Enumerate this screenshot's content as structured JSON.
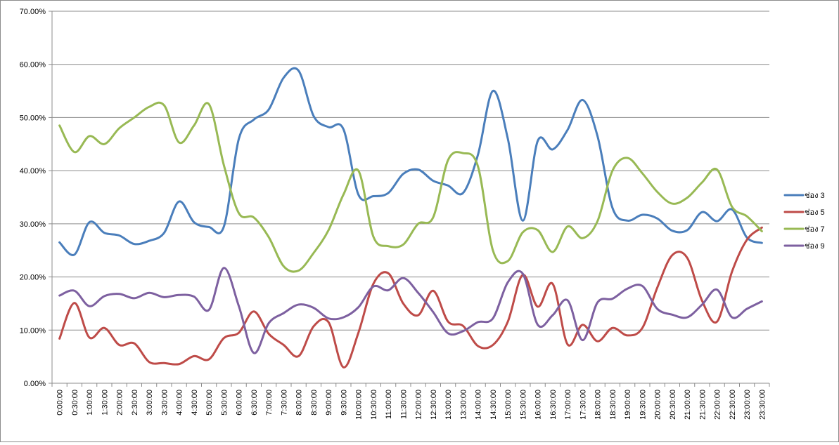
{
  "chart_data": {
    "type": "line",
    "smooth": true,
    "title": "",
    "xlabel": "",
    "ylabel": "",
    "ylim": [
      0,
      70
    ],
    "y_ticks": [
      "0.00%",
      "10.00%",
      "20.00%",
      "30.00%",
      "40.00%",
      "50.00%",
      "60.00%",
      "70.00%"
    ],
    "grid": "horizontal",
    "legend_position": "right",
    "categories": [
      "0:00:00",
      "0:30:00",
      "1:00:00",
      "1:30:00",
      "2:00:00",
      "2:30:00",
      "3:00:00",
      "3:30:00",
      "4:00:00",
      "4:30:00",
      "5:00:00",
      "5:30:00",
      "6:00:00",
      "6:30:00",
      "7:00:00",
      "7:30:00",
      "8:00:00",
      "8:30:00",
      "9:00:00",
      "9:30:00",
      "10:00:00",
      "10:30:00",
      "11:00:00",
      "11:30:00",
      "12:00:00",
      "12:30:00",
      "13:00:00",
      "13:30:00",
      "14:00:00",
      "14:30:00",
      "15:00:00",
      "15:30:00",
      "16:00:00",
      "16:30:00",
      "17:00:00",
      "17:30:00",
      "18:00:00",
      "18:30:00",
      "19:00:00",
      "19:30:00",
      "20:00:00",
      "20:30:00",
      "21:00:00",
      "21:30:00",
      "22:00:00",
      "22:30:00",
      "23:00:00",
      "23:30:00"
    ],
    "series": [
      {
        "name": "ช่อง 3",
        "color": "#4a7ebb",
        "values": [
          26.5,
          24.2,
          30.3,
          28.3,
          27.8,
          26.2,
          26.8,
          28.3,
          34.2,
          30.3,
          29.4,
          29.5,
          46.0,
          49.6,
          51.5,
          57.5,
          58.8,
          50.3,
          48.2,
          47.8,
          35.5,
          35.2,
          35.8,
          39.4,
          40.2,
          38.1,
          37.2,
          35.8,
          43.0,
          55.0,
          46.0,
          30.6,
          45.6,
          44.0,
          47.7,
          53.3,
          46.5,
          33.0,
          30.6,
          31.7,
          31.0,
          28.7,
          28.8,
          32.2,
          30.5,
          32.7,
          27.4,
          26.4
        ]
      },
      {
        "name": "ช่อง 5",
        "color": "#be4b48",
        "values": [
          8.4,
          15.1,
          8.6,
          10.4,
          7.2,
          7.5,
          4.0,
          3.8,
          3.6,
          5.1,
          4.5,
          8.5,
          9.5,
          13.5,
          9.3,
          7.2,
          5.1,
          10.7,
          11.5,
          3.0,
          9.5,
          18.7,
          20.7,
          15.0,
          12.8,
          17.4,
          11.6,
          10.8,
          7.0,
          7.2,
          11.6,
          20.4,
          14.4,
          18.7,
          7.3,
          11.0,
          7.9,
          10.4,
          9.0,
          10.4,
          18.0,
          24.1,
          23.6,
          15.5,
          11.6,
          21.0,
          27.0,
          29.3
        ]
      },
      {
        "name": "ช่อง 7",
        "color": "#98b954",
        "values": [
          48.5,
          43.5,
          46.5,
          45.0,
          48.0,
          50.0,
          52.0,
          52.3,
          45.3,
          48.5,
          52.5,
          41.0,
          32.0,
          31.2,
          27.5,
          22.0,
          21.2,
          24.5,
          28.8,
          35.5,
          40.0,
          27.6,
          25.8,
          26.1,
          30.0,
          31.2,
          42.0,
          43.3,
          40.8,
          25.0,
          23.0,
          28.4,
          28.8,
          24.7,
          29.5,
          27.3,
          30.5,
          40.0,
          42.4,
          39.5,
          36.0,
          33.8,
          34.9,
          37.8,
          40.2,
          33.2,
          31.4,
          28.6
        ]
      },
      {
        "name": "ช่อง 9",
        "color": "#7d60a0",
        "values": [
          16.5,
          17.4,
          14.5,
          16.4,
          16.8,
          16.0,
          17.0,
          16.2,
          16.6,
          16.3,
          13.8,
          21.7,
          14.5,
          5.7,
          11.3,
          13.2,
          14.8,
          14.2,
          12.2,
          12.4,
          14.3,
          18.2,
          17.5,
          19.8,
          17.0,
          13.4,
          9.4,
          9.8,
          11.5,
          12.2,
          19.0,
          20.6,
          11.0,
          12.8,
          15.6,
          8.1,
          15.2,
          15.9,
          17.8,
          18.3,
          14.0,
          12.9,
          12.4,
          14.8,
          17.6,
          12.4,
          14.0,
          15.4
        ]
      }
    ]
  }
}
